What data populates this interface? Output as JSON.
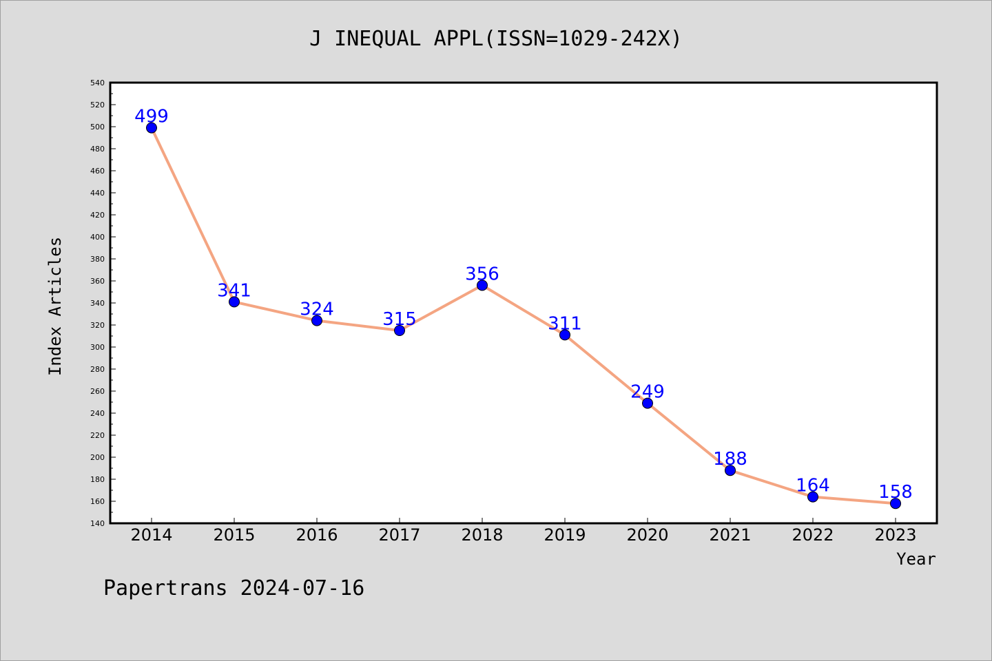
{
  "chart_data": {
    "type": "line",
    "title": "J INEQUAL APPL(ISSN=1029-242X)",
    "xlabel": "Year",
    "ylabel": "Index Articles",
    "categories": [
      "2014",
      "2015",
      "2016",
      "2017",
      "2018",
      "2019",
      "2020",
      "2021",
      "2022",
      "2023"
    ],
    "series": [
      {
        "values": [
          499,
          341,
          324,
          315,
          356,
          311,
          249,
          188,
          164,
          158
        ]
      }
    ],
    "ylim": [
      140,
      540
    ],
    "yticks": [
      140,
      160,
      180,
      200,
      220,
      240,
      260,
      280,
      300,
      320,
      340,
      360,
      380,
      400,
      420,
      440,
      460,
      480,
      500,
      520,
      540
    ],
    "grid": false,
    "colors": {
      "line": "#f4a582",
      "marker": "#0000ff",
      "label": "#0000ff",
      "background": "#dcdcdc",
      "plot_bg": "#ffffff"
    }
  },
  "footer": "Papertrans 2024-07-16"
}
